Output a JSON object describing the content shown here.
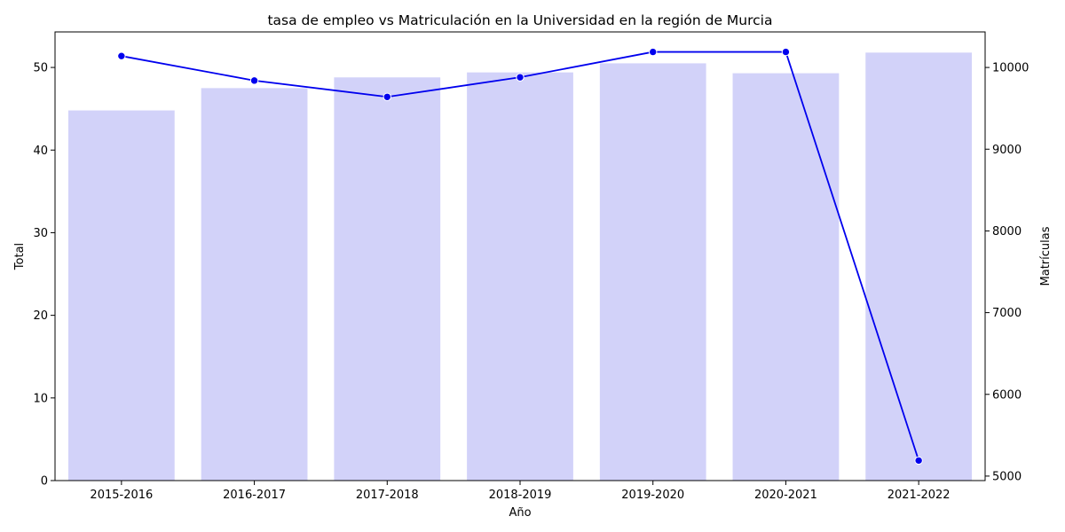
{
  "chart_data": {
    "type": "bar",
    "title": "tasa de empleo vs Matriculación en la Universidad en la región de Murcia",
    "xlabel": "Año",
    "ylabel": "Total",
    "y2label": "Matrículas",
    "categories": [
      "2015-2016",
      "2016-2017",
      "2017-2018",
      "2018-2019",
      "2019-2020",
      "2020-2021",
      "2021-2022"
    ],
    "series": [
      {
        "type": "bar",
        "axis": "left",
        "color": "#d2d2f9",
        "values": [
          44.8,
          47.5,
          48.8,
          49.4,
          50.5,
          49.3,
          51.8
        ]
      },
      {
        "type": "line",
        "axis": "right",
        "color": "#0000ee",
        "values": [
          10140,
          9840,
          9640,
          9880,
          10190,
          10190,
          5190
        ]
      }
    ],
    "ylim": [
      0,
      54.3
    ],
    "y_ticks": [
      0,
      10,
      20,
      30,
      40,
      50
    ],
    "y2lim": [
      4945,
      10435
    ],
    "y2_ticks": [
      5000,
      6000,
      7000,
      8000,
      9000,
      10000
    ],
    "grid": false,
    "legend": "none"
  }
}
